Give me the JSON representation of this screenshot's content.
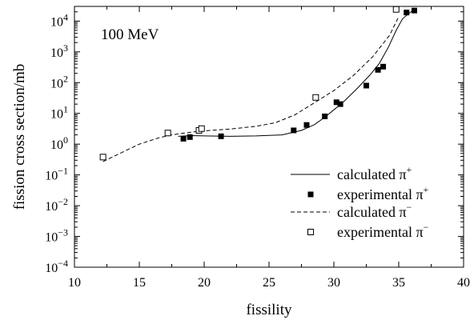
{
  "chart_data": {
    "type": "scatter",
    "annotation": "100 MeV",
    "xlabel": "fissility",
    "ylabel": "fission cross section/mb",
    "xlim": [
      10,
      40
    ],
    "ylim": [
      0.0001,
      30000
    ],
    "yscale": "log",
    "x_ticks": [
      10,
      15,
      20,
      25,
      30,
      35,
      40
    ],
    "y_ticks": [
      {
        "value": 0.0001,
        "base": "10",
        "exp": "−4"
      },
      {
        "value": 0.001,
        "base": "10",
        "exp": "−3"
      },
      {
        "value": 0.01,
        "base": "10",
        "exp": "−2"
      },
      {
        "value": 0.1,
        "base": "10",
        "exp": "−1"
      },
      {
        "value": 1,
        "base": "10",
        "exp": "0"
      },
      {
        "value": 10,
        "base": "10",
        "exp": "1"
      },
      {
        "value": 100,
        "base": "10",
        "exp": "2"
      },
      {
        "value": 1000,
        "base": "10",
        "exp": "3"
      },
      {
        "value": 10000,
        "base": "10",
        "exp": "4"
      }
    ],
    "legend_position": "bottom-right",
    "legend": [
      {
        "key": "calc_plus",
        "text": "calculated π",
        "sup": "+"
      },
      {
        "key": "exp_plus",
        "text": "experimental π",
        "sup": "+"
      },
      {
        "key": "calc_minus",
        "text": "calculated π",
        "sup": "−"
      },
      {
        "key": "exp_minus",
        "text": "experimental π",
        "sup": "−"
      }
    ],
    "series": {
      "calc_plus": {
        "style": "line-solid",
        "x": [
          18.0,
          19.0,
          20.0,
          22.0,
          24.0,
          26.0,
          27.5,
          28.5,
          29.3,
          30.0,
          30.8,
          31.8,
          32.8,
          33.5,
          34.2,
          34.8,
          35.3,
          36.0
        ],
        "y": [
          1.8,
          1.9,
          1.85,
          1.8,
          1.85,
          2.0,
          2.8,
          4.3,
          7.5,
          13.0,
          25.0,
          65.0,
          180.0,
          420.0,
          1400.0,
          5000.0,
          12000.0,
          21000.0
        ]
      },
      "exp_plus": {
        "style": "marker-filled-square",
        "x": [
          18.4,
          18.9,
          21.3,
          26.9,
          27.9,
          29.3,
          30.2,
          30.5,
          32.5,
          33.4,
          33.8,
          35.6,
          36.2
        ],
        "y": [
          1.5,
          1.7,
          1.8,
          2.8,
          4.2,
          8.0,
          23.0,
          20.0,
          80.0,
          260.0,
          330.0,
          19000.0,
          22000.0
        ]
      },
      "calc_minus": {
        "style": "line-dashed",
        "x": [
          12.2,
          13.5,
          15.0,
          16.5,
          17.5,
          18.5,
          19.5,
          20.5,
          22.0,
          24.0,
          25.5,
          27.0,
          28.5,
          30.0,
          31.5,
          33.0,
          34.3,
          35.0
        ],
        "y": [
          0.27,
          0.5,
          1.0,
          1.6,
          2.0,
          2.3,
          2.6,
          2.8,
          3.1,
          3.8,
          5.0,
          9.0,
          22.0,
          55.0,
          170.0,
          700.0,
          3500.0,
          14000.0
        ]
      },
      "exp_minus": {
        "style": "marker-open-square",
        "x": [
          12.2,
          17.2,
          19.6,
          19.8,
          28.6,
          34.8
        ],
        "y": [
          0.38,
          2.3,
          2.8,
          3.2,
          33.0,
          24000.0
        ]
      }
    },
    "grid": false
  }
}
